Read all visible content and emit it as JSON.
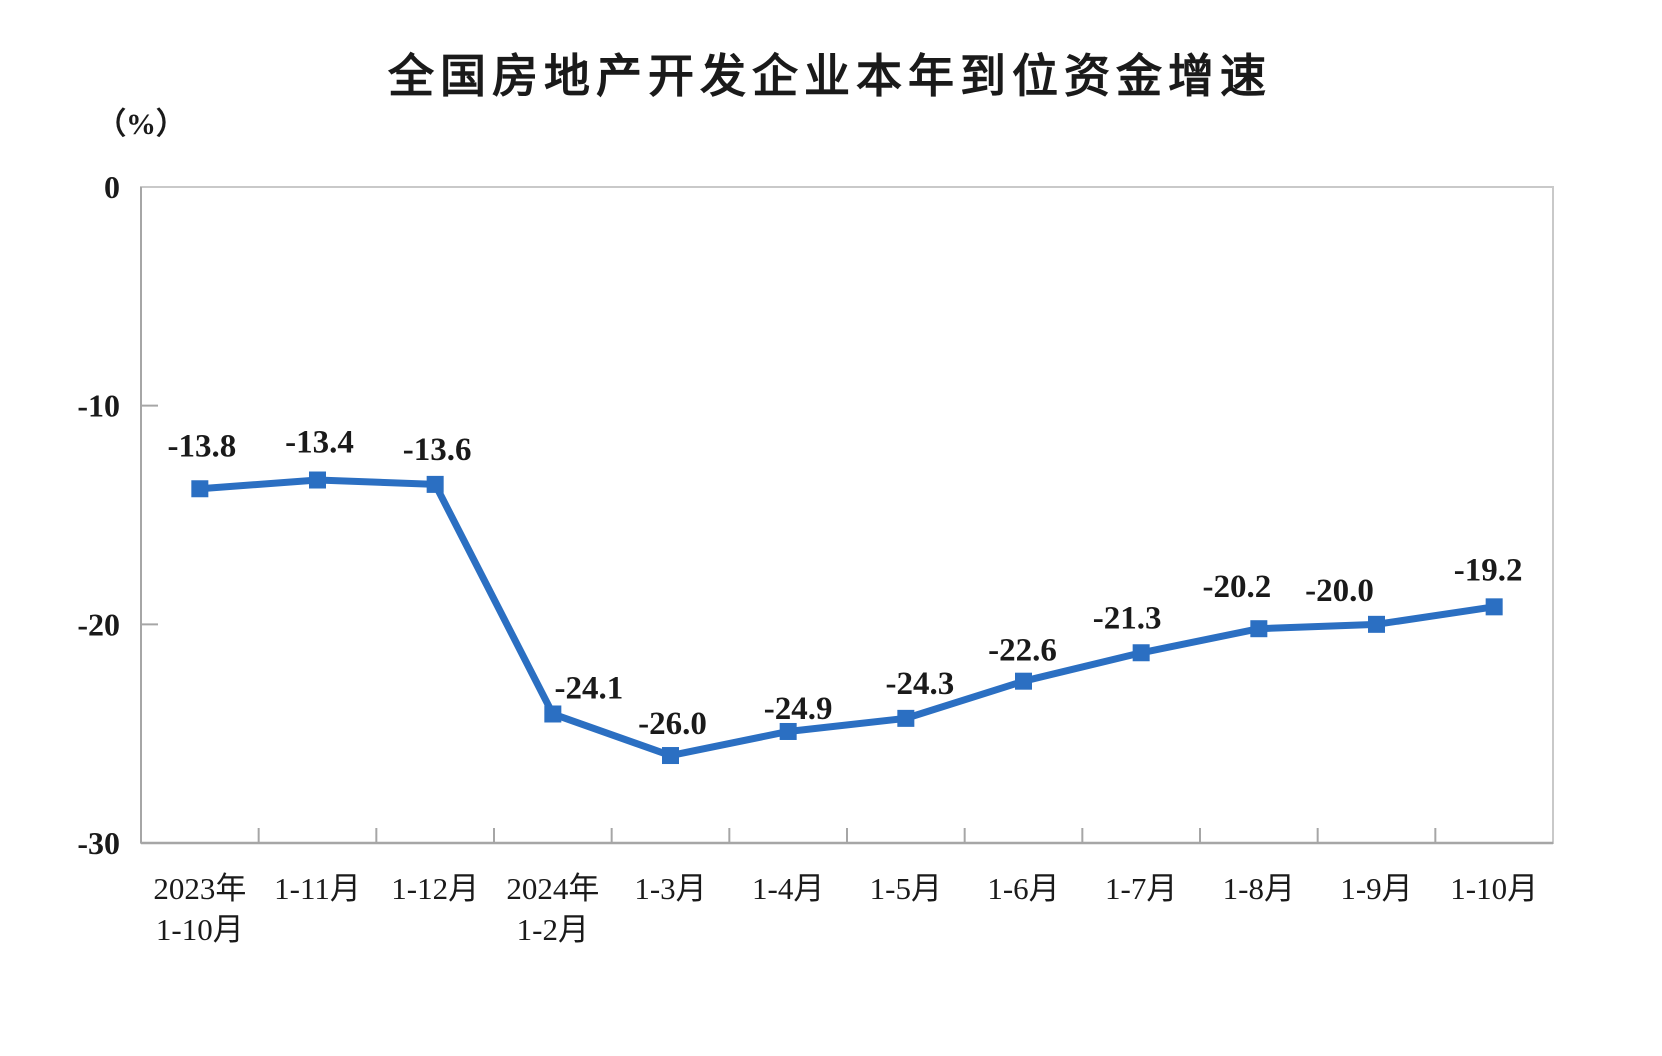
{
  "chart_data": {
    "type": "line",
    "title": "全国房地产开发企业本年到位资金增速",
    "unit_label": "（%）",
    "categories": [
      [
        "2023年",
        "1-10月"
      ],
      [
        "1-11月"
      ],
      [
        "1-12月"
      ],
      [
        "2024年",
        "1-2月"
      ],
      [
        "1-3月"
      ],
      [
        "1-4月"
      ],
      [
        "1-5月"
      ],
      [
        "1-6月"
      ],
      [
        "1-7月"
      ],
      [
        "1-8月"
      ],
      [
        "1-9月"
      ],
      [
        "1-10月"
      ]
    ],
    "values": [
      -13.8,
      -13.4,
      -13.6,
      -24.1,
      -26.0,
      -24.9,
      -24.3,
      -22.6,
      -21.3,
      -20.2,
      -20.0,
      -19.2
    ],
    "data_labels": [
      "-13.8",
      "-13.4",
      "-13.6",
      "-24.1",
      "-26.0",
      "-24.9",
      "-24.3",
      "-22.6",
      "-21.3",
      "-20.2",
      "-20.0",
      "-19.2"
    ],
    "y_tick_values": [
      0,
      -10,
      -20,
      -30
    ],
    "y_tick_labels": [
      "0",
      "-10",
      "-20",
      "-30"
    ],
    "ylim": [
      -30,
      0
    ],
    "grid": "off",
    "legend": "none",
    "colors": {
      "line": "#2B6FC2",
      "marker": "#2B6FC2",
      "text": "#1A1A1A",
      "axis_line": "#A6A6A6",
      "plot_border": "#C9C9C9"
    }
  }
}
